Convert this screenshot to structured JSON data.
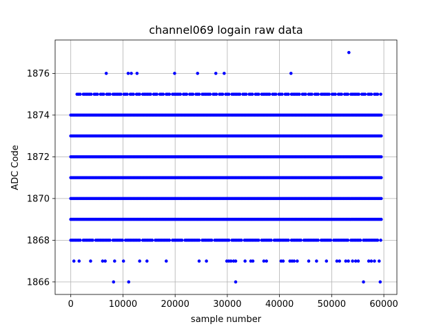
{
  "chart_data": {
    "type": "scatter",
    "title": "channel069 logain raw data",
    "xlabel": "sample number",
    "ylabel": "ADC Code",
    "xlim": [
      -3000,
      62500
    ],
    "ylim": [
      1865.4,
      1877.6
    ],
    "x_ticks": [
      0,
      10000,
      20000,
      30000,
      40000,
      50000,
      60000
    ],
    "y_ticks": [
      1866,
      1868,
      1870,
      1872,
      1874,
      1876
    ],
    "grid": true,
    "marker_color": "#0000ff",
    "sample_range": [
      0,
      59500
    ],
    "dense_levels": [
      1869,
      1870,
      1871,
      1872,
      1873,
      1874
    ],
    "mid_levels": [
      1868,
      1875
    ],
    "sparse_points": [
      {
        "x": 6800,
        "y": 1876
      },
      {
        "x": 11000,
        "y": 1876
      },
      {
        "x": 11600,
        "y": 1876
      },
      {
        "x": 12700,
        "y": 1876
      },
      {
        "x": 19900,
        "y": 1876
      },
      {
        "x": 24300,
        "y": 1876
      },
      {
        "x": 27800,
        "y": 1876
      },
      {
        "x": 29400,
        "y": 1876
      },
      {
        "x": 42200,
        "y": 1876
      },
      {
        "x": 53300,
        "y": 1877
      },
      {
        "x": 600,
        "y": 1867
      },
      {
        "x": 1600,
        "y": 1867
      },
      {
        "x": 3800,
        "y": 1867
      },
      {
        "x": 6100,
        "y": 1867
      },
      {
        "x": 6600,
        "y": 1867
      },
      {
        "x": 8400,
        "y": 1867
      },
      {
        "x": 10100,
        "y": 1867
      },
      {
        "x": 13200,
        "y": 1867
      },
      {
        "x": 14600,
        "y": 1867
      },
      {
        "x": 18300,
        "y": 1867
      },
      {
        "x": 24600,
        "y": 1867
      },
      {
        "x": 26000,
        "y": 1867
      },
      {
        "x": 29900,
        "y": 1867
      },
      {
        "x": 30300,
        "y": 1867
      },
      {
        "x": 30700,
        "y": 1867
      },
      {
        "x": 31200,
        "y": 1867
      },
      {
        "x": 31600,
        "y": 1867
      },
      {
        "x": 33400,
        "y": 1867
      },
      {
        "x": 34500,
        "y": 1867
      },
      {
        "x": 34900,
        "y": 1867
      },
      {
        "x": 37000,
        "y": 1867
      },
      {
        "x": 37500,
        "y": 1867
      },
      {
        "x": 40300,
        "y": 1867
      },
      {
        "x": 40700,
        "y": 1867
      },
      {
        "x": 42000,
        "y": 1867
      },
      {
        "x": 42400,
        "y": 1867
      },
      {
        "x": 42800,
        "y": 1867
      },
      {
        "x": 43400,
        "y": 1867
      },
      {
        "x": 45600,
        "y": 1867
      },
      {
        "x": 47100,
        "y": 1867
      },
      {
        "x": 49000,
        "y": 1867
      },
      {
        "x": 51000,
        "y": 1867
      },
      {
        "x": 51500,
        "y": 1867
      },
      {
        "x": 52700,
        "y": 1867
      },
      {
        "x": 53200,
        "y": 1867
      },
      {
        "x": 54000,
        "y": 1867
      },
      {
        "x": 54600,
        "y": 1867
      },
      {
        "x": 55100,
        "y": 1867
      },
      {
        "x": 57100,
        "y": 1867
      },
      {
        "x": 57600,
        "y": 1867
      },
      {
        "x": 58200,
        "y": 1867
      },
      {
        "x": 59100,
        "y": 1867
      },
      {
        "x": 8200,
        "y": 1866
      },
      {
        "x": 11100,
        "y": 1866
      },
      {
        "x": 31600,
        "y": 1866
      },
      {
        "x": 56100,
        "y": 1866
      },
      {
        "x": 59300,
        "y": 1866
      }
    ]
  }
}
